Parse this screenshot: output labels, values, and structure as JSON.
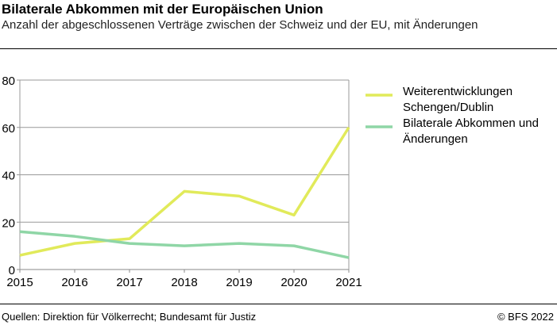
{
  "header": {
    "title": "Bilaterale Abkommen mit der Europäischen Union",
    "subtitle": "Anzahl der abgeschlossenen Verträge zwischen der Schweiz und der EU, mit Änderungen"
  },
  "footer": {
    "source": "Quellen: Direktion für Völkerrecht; Bundesamt für Justiz",
    "copyright": "© BFS 2022"
  },
  "chart_data": {
    "type": "line",
    "x": [
      2015,
      2016,
      2017,
      2018,
      2019,
      2020,
      2021
    ],
    "ylim": [
      0,
      80
    ],
    "yticks": [
      0,
      20,
      40,
      60,
      80
    ],
    "grid": true,
    "legend": "right",
    "series": [
      {
        "name": [
          "Weiterentwicklungen",
          "Schengen/Dublin"
        ],
        "color": "#e1ea5a",
        "values": [
          6,
          11,
          13,
          33,
          31,
          23,
          60
        ]
      },
      {
        "name": [
          "Bilaterale Abkommen und",
          "Änderungen"
        ],
        "color": "#8fd6a6",
        "values": [
          16,
          14,
          11,
          10,
          11,
          10,
          5
        ]
      }
    ]
  }
}
